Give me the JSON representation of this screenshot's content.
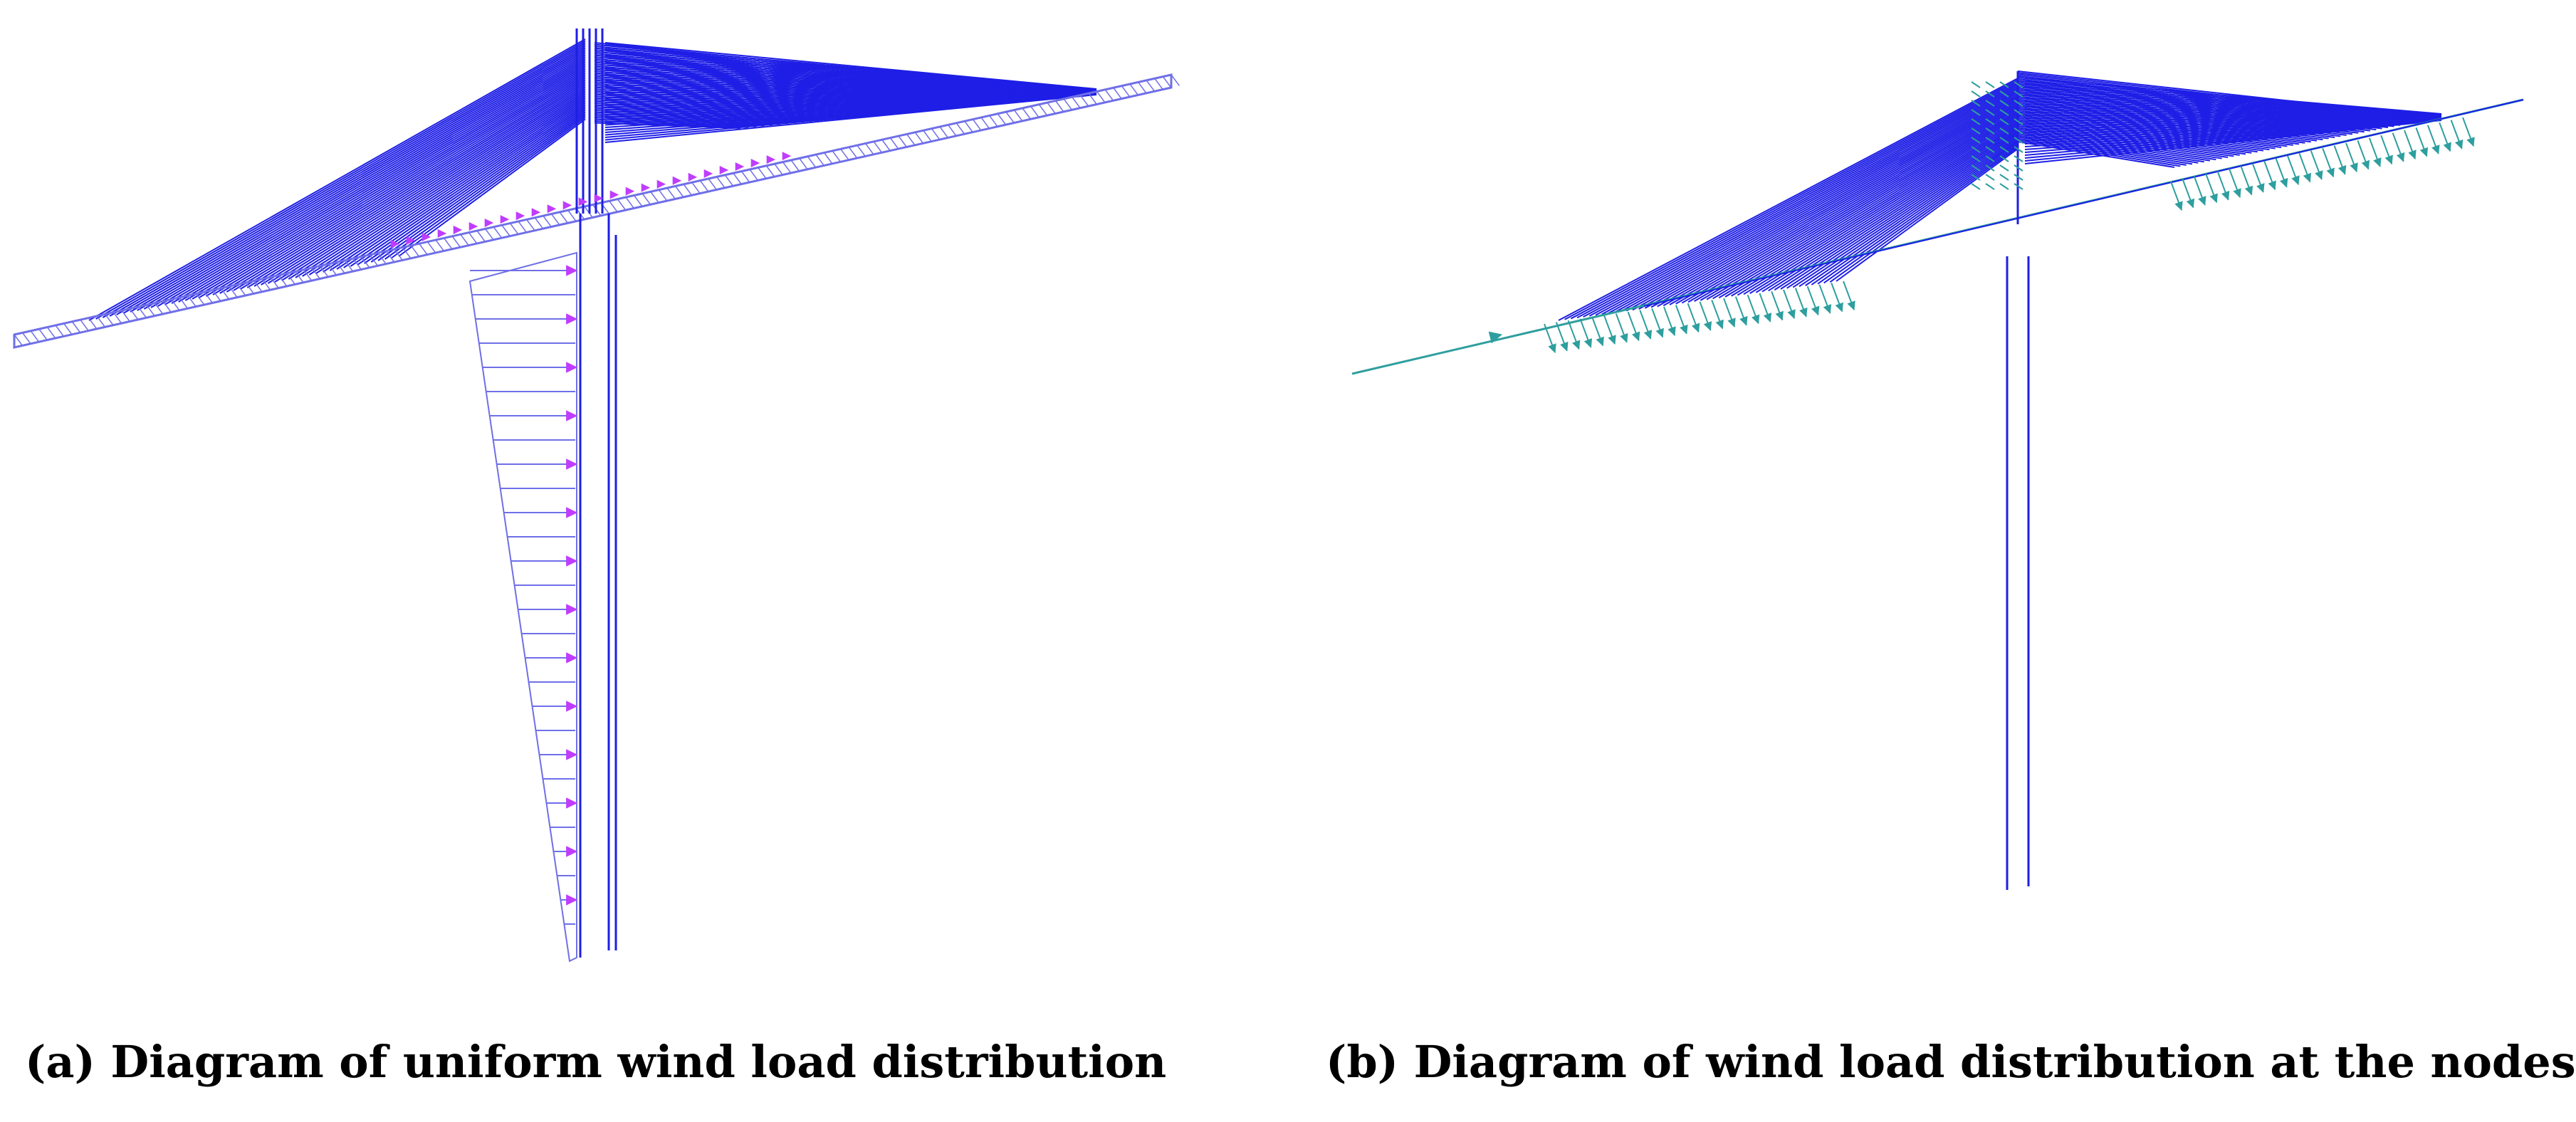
{
  "captions": {
    "a": {
      "marker": "(a)",
      "text": " Diagram of uniform wind load distribution"
    },
    "b": {
      "marker": "(b)",
      "text": " Diagram of wind load distribution at the nodes"
    }
  },
  "colors": {
    "structure": "#1e1ee6",
    "deck_light": "#6f6fe8",
    "arrow_uniform": "#c03cff",
    "arrow_nodal": "#2e9e9e"
  }
}
